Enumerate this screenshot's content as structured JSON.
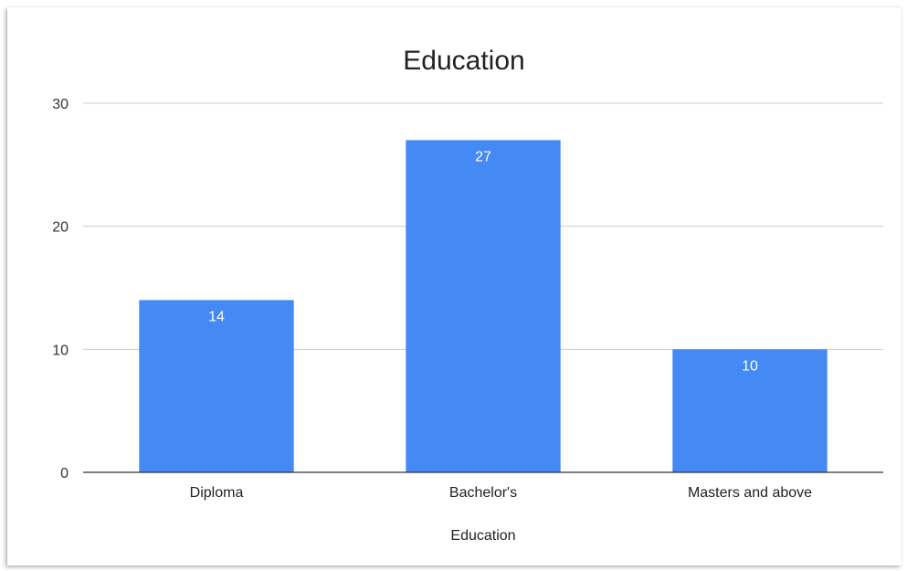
{
  "chart_data": {
    "type": "bar",
    "title": "Education",
    "xlabel": "Education",
    "ylabel": "",
    "categories": [
      "Diploma",
      "Bachelor's",
      "Masters and above"
    ],
    "values": [
      14,
      27,
      10
    ],
    "ylim": [
      0,
      30
    ],
    "yticks": [
      0,
      10,
      20,
      30
    ],
    "grid": true,
    "legend": "none",
    "bar_color": "#4589f5",
    "grid_color": "#cccccc",
    "axis_color": "#333333"
  }
}
